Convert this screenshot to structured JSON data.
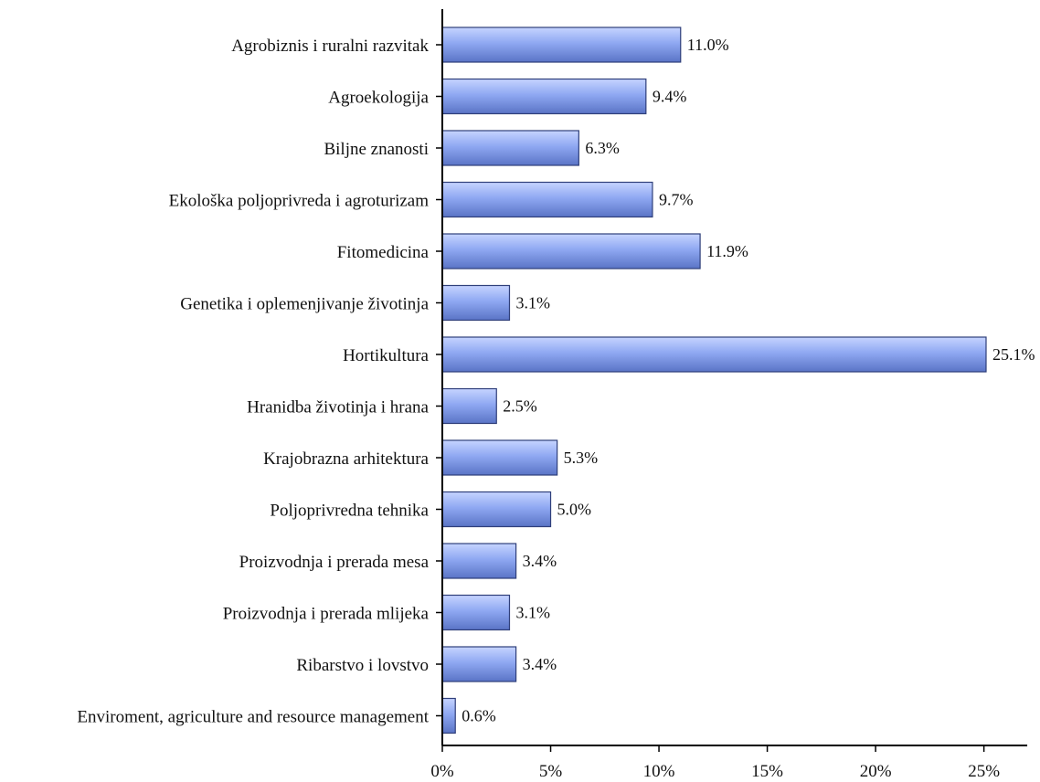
{
  "chart_data": {
    "type": "bar",
    "orientation": "horizontal",
    "categories": [
      "Agrobiznis i ruralni razvitak",
      "Agroekologija",
      "Biljne znanosti",
      "Ekološka poljoprivreda i agroturizam",
      "Fitomedicina",
      "Genetika i oplemenjivanje životinja",
      "Hortikultura",
      "Hranidba životinja i hrana",
      "Krajobrazna arhitektura",
      "Poljoprivredna tehnika",
      "Proizvodnja i prerada mesa",
      "Proizvodnja i prerada mlijeka",
      "Ribarstvo i lovstvo",
      "Enviroment, agriculture and resource management"
    ],
    "values": [
      11.0,
      9.4,
      6.3,
      9.7,
      11.9,
      3.1,
      25.1,
      2.5,
      5.3,
      5.0,
      3.4,
      3.1,
      3.4,
      0.6
    ],
    "value_labels": [
      "11.0%",
      "9.4%",
      "6.3%",
      "9.7%",
      "11.9%",
      "3.1%",
      "25.1%",
      "2.5%",
      "5.3%",
      "5.0%",
      "3.4%",
      "3.1%",
      "3.4%",
      "0.6%"
    ],
    "xlim": [
      0,
      27
    ],
    "x_ticks": [
      0,
      5,
      10,
      15,
      20,
      25
    ],
    "x_tick_labels": [
      "0%",
      "5%",
      "10%",
      "15%",
      "20%",
      "25%"
    ],
    "grid": false,
    "legend": "none",
    "colors": {
      "bar_top": "#c6d4ff",
      "bar_mid": "#8fa8f2",
      "bar_bottom": "#5a74c6",
      "bar_stroke": "#2f3f7a",
      "axis": "#000000"
    }
  }
}
